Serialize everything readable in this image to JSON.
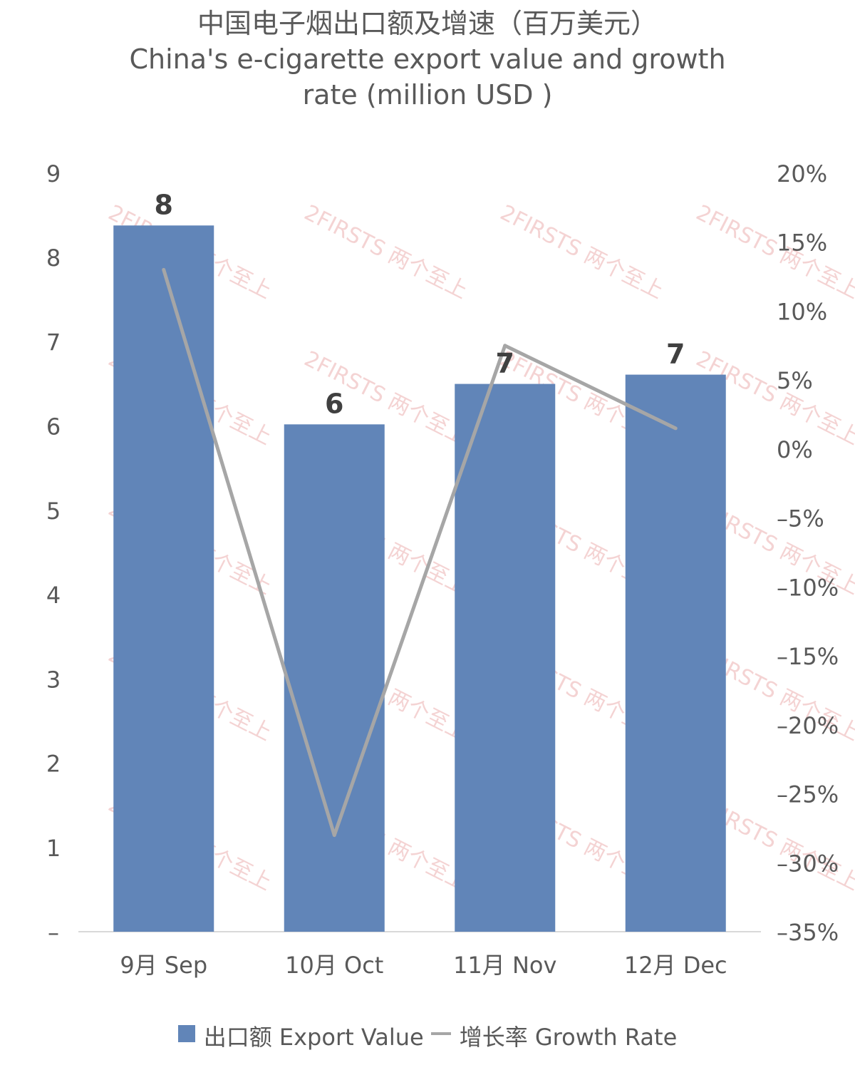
{
  "title": {
    "line1": "中国电子烟出口额及增速（百万美元）",
    "line2": "China's e-cigarette export value and growth",
    "line3": "rate (million USD )"
  },
  "legend": {
    "bar_label": "出口额 Export Value",
    "line_label": "增长率 Growth Rate"
  },
  "watermark": "2FIRSTS 两个至上",
  "colors": {
    "bar": "#6185b8",
    "line": "#a6a6a6",
    "axis_text": "#595959",
    "watermark": "#f2c9c9"
  },
  "chart_data": {
    "type": "bar",
    "categories": [
      "9月 Sep",
      "10月 Oct",
      "11月 Nov",
      "12月 Dec"
    ],
    "series": [
      {
        "name": "出口额 Export Value",
        "type": "bar",
        "axis": "left",
        "values": [
          8.38,
          6.02,
          6.5,
          6.61
        ],
        "data_labels": [
          "8",
          "6",
          "7",
          "7"
        ]
      },
      {
        "name": "增长率 Growth Rate",
        "type": "line",
        "axis": "right",
        "values": [
          13.0,
          -28.0,
          7.5,
          1.5
        ]
      }
    ],
    "y_left": {
      "ylim": [
        0,
        9
      ],
      "tick_labels": [
        "–",
        "1",
        "2",
        "3",
        "4",
        "5",
        "6",
        "7",
        "8",
        "9"
      ]
    },
    "y_right": {
      "ylim": [
        -35,
        20
      ],
      "tick_labels": [
        "–35%",
        "–30%",
        "–25%",
        "–20%",
        "–15%",
        "–10%",
        "–5%",
        "0%",
        "5%",
        "10%",
        "15%",
        "20%"
      ]
    },
    "grid": false,
    "legend_position": "bottom"
  }
}
